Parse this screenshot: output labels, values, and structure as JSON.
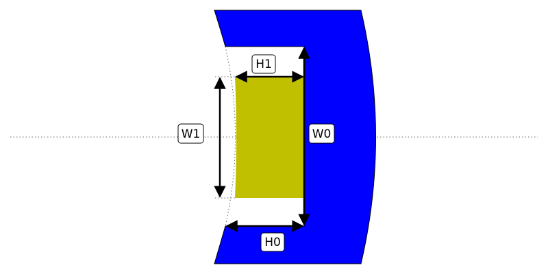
{
  "diagram": {
    "colors": {
      "outer_fill": "#0000ff",
      "inner_fill": "#c0c000",
      "outline": "#000000",
      "guide": "#666666",
      "background": "#ffffff"
    },
    "labels": {
      "H1": "H1",
      "H0": "H0",
      "W1": "W1",
      "W0": "W0"
    }
  }
}
